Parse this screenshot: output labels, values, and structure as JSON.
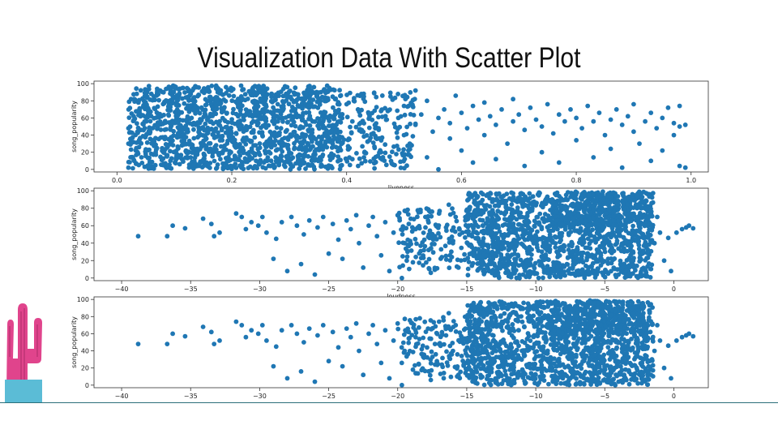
{
  "slide": {
    "title": "Visualization Data With Scatter Plot"
  },
  "colors": {
    "points": "#1f77b4",
    "axis": "#333333",
    "accent_line": "#2b6f7a",
    "cactus": "#e0448c",
    "pot": "#5bbcd6"
  },
  "icons": {
    "decoration": "cactus-in-pot"
  },
  "chart_data": [
    {
      "type": "scatter",
      "xlabel": "liveness",
      "ylabel": "song_popularity",
      "xlim": [
        -0.04,
        1.03
      ],
      "ylim": [
        -3,
        103
      ],
      "xticks": [
        0.0,
        0.2,
        0.4,
        0.6,
        0.8,
        1.0
      ],
      "xtick_labels": [
        "0.0",
        "0.2",
        "0.4",
        "0.6",
        "0.8",
        "1.0"
      ],
      "yticks": [
        0,
        20,
        40,
        60,
        80,
        100
      ],
      "ytick_labels": [
        "0",
        "20",
        "40",
        "60",
        "80",
        "100"
      ],
      "grid": false,
      "points": [
        [
          0.02,
          2
        ],
        [
          0.02,
          30
        ],
        [
          0.02,
          48
        ],
        [
          0.03,
          58
        ],
        [
          0.03,
          82
        ],
        [
          0.03,
          10
        ],
        [
          0.04,
          65
        ],
        [
          0.05,
          18
        ],
        [
          0.06,
          88
        ],
        [
          0.07,
          94
        ],
        [
          0.08,
          5
        ],
        [
          0.09,
          74
        ],
        [
          0.1,
          97
        ],
        [
          0.11,
          38
        ],
        [
          0.12,
          84
        ],
        [
          0.13,
          60
        ],
        [
          0.14,
          24
        ],
        [
          0.15,
          92
        ],
        [
          0.16,
          46
        ],
        [
          0.17,
          70
        ],
        [
          0.18,
          12
        ],
        [
          0.19,
          96
        ],
        [
          0.2,
          55
        ],
        [
          0.21,
          80
        ],
        [
          0.22,
          33
        ],
        [
          0.23,
          91
        ],
        [
          0.24,
          64
        ],
        [
          0.25,
          8
        ],
        [
          0.26,
          86
        ],
        [
          0.27,
          42
        ],
        [
          0.28,
          76
        ],
        [
          0.29,
          94
        ],
        [
          0.3,
          20
        ],
        [
          0.31,
          68
        ],
        [
          0.32,
          50
        ],
        [
          0.33,
          88
        ],
        [
          0.34,
          14
        ],
        [
          0.35,
          72
        ],
        [
          0.36,
          58
        ],
        [
          0.37,
          95
        ],
        [
          0.38,
          36
        ],
        [
          0.38,
          82
        ],
        [
          0.39,
          62
        ],
        [
          0.39,
          4
        ],
        [
          0.4,
          76
        ],
        [
          0.41,
          56
        ],
        [
          0.41,
          12
        ],
        [
          0.42,
          70
        ],
        [
          0.42,
          4
        ],
        [
          0.43,
          85
        ],
        [
          0.44,
          62
        ],
        [
          0.44,
          34
        ],
        [
          0.45,
          48
        ],
        [
          0.46,
          20
        ],
        [
          0.46,
          68
        ],
        [
          0.47,
          58
        ],
        [
          0.48,
          6
        ],
        [
          0.48,
          82
        ],
        [
          0.49,
          60
        ],
        [
          0.5,
          40
        ],
        [
          0.5,
          74
        ],
        [
          0.51,
          30
        ],
        [
          0.52,
          52
        ],
        [
          0.52,
          92
        ],
        [
          0.53,
          64
        ],
        [
          0.54,
          14
        ],
        [
          0.54,
          80
        ],
        [
          0.55,
          44
        ],
        [
          0.56,
          60
        ],
        [
          0.56,
          0
        ],
        [
          0.57,
          70
        ],
        [
          0.58,
          36
        ],
        [
          0.58,
          54
        ],
        [
          0.59,
          86
        ],
        [
          0.6,
          22
        ],
        [
          0.6,
          66
        ],
        [
          0.61,
          48
        ],
        [
          0.62,
          74
        ],
        [
          0.62,
          8
        ],
        [
          0.63,
          58
        ],
        [
          0.64,
          40
        ],
        [
          0.64,
          78
        ],
        [
          0.65,
          62
        ],
        [
          0.66,
          12
        ],
        [
          0.66,
          52
        ],
        [
          0.67,
          70
        ],
        [
          0.68,
          30
        ],
        [
          0.69,
          56
        ],
        [
          0.69,
          82
        ],
        [
          0.7,
          64
        ],
        [
          0.71,
          4
        ],
        [
          0.71,
          46
        ],
        [
          0.72,
          72
        ],
        [
          0.73,
          58
        ],
        [
          0.74,
          20
        ],
        [
          0.74,
          50
        ],
        [
          0.75,
          76
        ],
        [
          0.76,
          42
        ],
        [
          0.77,
          64
        ],
        [
          0.77,
          8
        ],
        [
          0.78,
          56
        ],
        [
          0.79,
          70
        ],
        [
          0.8,
          34
        ],
        [
          0.8,
          60
        ],
        [
          0.81,
          48
        ],
        [
          0.82,
          74
        ],
        [
          0.83,
          14
        ],
        [
          0.83,
          56
        ],
        [
          0.84,
          66
        ],
        [
          0.85,
          40
        ],
        [
          0.86,
          58
        ],
        [
          0.86,
          24
        ],
        [
          0.87,
          70
        ],
        [
          0.88,
          52
        ],
        [
          0.88,
          2
        ],
        [
          0.89,
          62
        ],
        [
          0.9,
          44
        ],
        [
          0.9,
          76
        ],
        [
          0.91,
          30
        ],
        [
          0.92,
          56
        ],
        [
          0.93,
          66
        ],
        [
          0.93,
          10
        ],
        [
          0.94,
          48
        ],
        [
          0.95,
          60
        ],
        [
          0.95,
          22
        ],
        [
          0.96,
          72
        ],
        [
          0.97,
          54
        ],
        [
          0.97,
          40
        ],
        [
          0.98,
          74
        ],
        [
          0.98,
          50
        ],
        [
          0.98,
          4
        ],
        [
          0.99,
          2
        ],
        [
          0.99,
          52
        ]
      ],
      "dense_regions": [
        {
          "x": [
            0.02,
            0.39
          ],
          "y": [
            0,
            98
          ],
          "n": 1400
        },
        {
          "x": [
            0.39,
            0.52
          ],
          "y": [
            0,
            90
          ],
          "n": 180
        }
      ]
    },
    {
      "type": "scatter",
      "xlabel": "loudness",
      "ylabel": "song_popularity",
      "xlim": [
        -42,
        2.5
      ],
      "ylim": [
        -3,
        103
      ],
      "xticks": [
        -40,
        -35,
        -30,
        -25,
        -20,
        -15,
        -10,
        -5,
        0
      ],
      "xtick_labels": [
        "−40",
        "−35",
        "−30",
        "−25",
        "−20",
        "−15",
        "−10",
        "−5",
        "0"
      ],
      "yticks": [
        0,
        20,
        40,
        60,
        80,
        100
      ],
      "ytick_labels": [
        "0",
        "20",
        "40",
        "60",
        "80",
        "100"
      ],
      "grid": false,
      "points": [
        [
          -38.8,
          48
        ],
        [
          -36.7,
          48
        ],
        [
          -36.3,
          60
        ],
        [
          -35.4,
          57
        ],
        [
          -34.1,
          68
        ],
        [
          -33.5,
          62
        ],
        [
          -33.3,
          48
        ],
        [
          -32.9,
          52
        ],
        [
          -31.7,
          74
        ],
        [
          -31.3,
          70
        ],
        [
          -31.0,
          56
        ],
        [
          -30.6,
          64
        ],
        [
          -30.1,
          60
        ],
        [
          -29.8,
          70
        ],
        [
          -29.5,
          52
        ],
        [
          -29.0,
          22
        ],
        [
          -28.8,
          45
        ],
        [
          -28.4,
          64
        ],
        [
          -28.0,
          8
        ],
        [
          -27.7,
          70
        ],
        [
          -27.3,
          60
        ],
        [
          -27.0,
          16
        ],
        [
          -26.8,
          50
        ],
        [
          -26.4,
          66
        ],
        [
          -26.0,
          4
        ],
        [
          -25.8,
          58
        ],
        [
          -25.4,
          70
        ],
        [
          -25.0,
          28
        ],
        [
          -24.7,
          62
        ],
        [
          -24.3,
          44
        ],
        [
          -24.0,
          22
        ],
        [
          -23.7,
          66
        ],
        [
          -23.4,
          56
        ],
        [
          -23.0,
          72
        ],
        [
          -22.8,
          40
        ],
        [
          -22.5,
          12
        ],
        [
          -22.1,
          60
        ],
        [
          -21.8,
          70
        ],
        [
          -21.5,
          48
        ],
        [
          -21.2,
          26
        ],
        [
          -20.9,
          64
        ],
        [
          -20.6,
          8
        ],
        [
          -20.3,
          52
        ],
        [
          -20.0,
          72
        ],
        [
          -19.7,
          0
        ],
        [
          -19.5,
          40
        ],
        [
          -19.2,
          62
        ],
        [
          -18.9,
          18
        ],
        [
          -18.7,
          56
        ],
        [
          -18.4,
          78
        ],
        [
          -18.1,
          32
        ],
        [
          -17.8,
          66
        ],
        [
          -17.6,
          6
        ],
        [
          -17.3,
          48
        ],
        [
          -17.0,
          74
        ],
        [
          -16.8,
          24
        ],
        [
          -16.5,
          58
        ],
        [
          -16.3,
          84
        ],
        [
          -16.0,
          40
        ],
        [
          -15.8,
          70
        ],
        [
          -15.6,
          12
        ],
        [
          -15.3,
          52
        ],
        [
          -15.1,
          66
        ],
        [
          -4,
          4
        ],
        [
          -3.5,
          8
        ],
        [
          -3.0,
          96
        ],
        [
          -2.6,
          2
        ],
        [
          -2.2,
          30
        ],
        [
          -2.0,
          6
        ],
        [
          -1.7,
          62
        ],
        [
          -1.4,
          40
        ],
        [
          -1.2,
          70
        ],
        [
          -1.0,
          52
        ],
        [
          -0.7,
          20
        ],
        [
          -0.4,
          46
        ],
        [
          -0.2,
          8
        ],
        [
          0.2,
          52
        ],
        [
          0.6,
          56
        ],
        [
          0.9,
          58
        ],
        [
          1.1,
          60
        ],
        [
          1.4,
          57
        ]
      ],
      "dense_regions": [
        {
          "x": [
            -15,
            -1.5
          ],
          "y": [
            0,
            98
          ],
          "n": 1400
        },
        {
          "x": [
            -20,
            -13
          ],
          "y": [
            8,
            80
          ],
          "n": 180
        },
        {
          "x": [
            -9,
            -2
          ],
          "y": [
            60,
            99
          ],
          "n": 220
        }
      ]
    },
    {
      "type": "scatter",
      "xlabel": "",
      "ylabel": "song_popularity",
      "xlim": [
        -42,
        2.5
      ],
      "ylim": [
        -3,
        103
      ],
      "xticks": [
        -40,
        -35,
        -30,
        -25,
        -20,
        -15,
        -10,
        -5,
        0
      ],
      "xtick_labels": [
        "−40",
        "−35",
        "−30",
        "−25",
        "−20",
        "−15",
        "−10",
        "−5",
        "0"
      ],
      "yticks": [
        0,
        20,
        40,
        60,
        80,
        100
      ],
      "ytick_labels": [
        "0",
        "20",
        "40",
        "60",
        "80",
        "100"
      ],
      "grid": false,
      "points": [
        [
          -38.8,
          48
        ],
        [
          -36.7,
          48
        ],
        [
          -36.3,
          60
        ],
        [
          -35.4,
          57
        ],
        [
          -34.1,
          68
        ],
        [
          -33.5,
          62
        ],
        [
          -33.3,
          48
        ],
        [
          -32.9,
          52
        ],
        [
          -31.7,
          74
        ],
        [
          -31.3,
          70
        ],
        [
          -31.0,
          56
        ],
        [
          -30.6,
          64
        ],
        [
          -30.1,
          60
        ],
        [
          -29.8,
          70
        ],
        [
          -29.5,
          52
        ],
        [
          -29.0,
          22
        ],
        [
          -28.8,
          45
        ],
        [
          -28.4,
          64
        ],
        [
          -28.0,
          8
        ],
        [
          -27.7,
          70
        ],
        [
          -27.3,
          60
        ],
        [
          -27.0,
          16
        ],
        [
          -26.8,
          50
        ],
        [
          -26.4,
          66
        ],
        [
          -26.0,
          4
        ],
        [
          -25.8,
          58
        ],
        [
          -25.4,
          70
        ],
        [
          -25.0,
          28
        ],
        [
          -24.7,
          62
        ],
        [
          -24.3,
          44
        ],
        [
          -24.0,
          22
        ],
        [
          -23.7,
          66
        ],
        [
          -23.4,
          56
        ],
        [
          -23.0,
          72
        ],
        [
          -22.8,
          40
        ],
        [
          -22.5,
          12
        ],
        [
          -22.1,
          60
        ],
        [
          -21.8,
          70
        ],
        [
          -21.5,
          48
        ],
        [
          -21.2,
          26
        ],
        [
          -20.9,
          64
        ],
        [
          -20.6,
          8
        ],
        [
          -20.3,
          52
        ],
        [
          -20.0,
          72
        ],
        [
          -19.7,
          0
        ],
        [
          -19.5,
          40
        ],
        [
          -19.2,
          62
        ],
        [
          -18.9,
          18
        ],
        [
          -18.7,
          56
        ],
        [
          -18.4,
          78
        ],
        [
          -18.1,
          32
        ],
        [
          -17.8,
          66
        ],
        [
          -17.6,
          6
        ],
        [
          -17.3,
          48
        ],
        [
          -17.0,
          74
        ],
        [
          -16.8,
          24
        ],
        [
          -16.5,
          58
        ],
        [
          -16.3,
          84
        ],
        [
          -16.0,
          40
        ],
        [
          -15.8,
          70
        ],
        [
          -15.6,
          12
        ],
        [
          -15.3,
          52
        ],
        [
          -15.1,
          66
        ],
        [
          -4,
          4
        ],
        [
          -3.5,
          8
        ],
        [
          -3.0,
          96
        ],
        [
          -2.6,
          2
        ],
        [
          -2.2,
          30
        ],
        [
          -2.0,
          6
        ],
        [
          -1.7,
          62
        ],
        [
          -1.4,
          40
        ],
        [
          -1.2,
          70
        ],
        [
          -1.0,
          52
        ],
        [
          -0.7,
          20
        ],
        [
          -0.4,
          46
        ],
        [
          -0.2,
          8
        ],
        [
          0.2,
          52
        ],
        [
          0.6,
          56
        ],
        [
          0.9,
          58
        ],
        [
          1.1,
          60
        ],
        [
          1.4,
          57
        ]
      ],
      "dense_regions": [
        {
          "x": [
            -15,
            -1.5
          ],
          "y": [
            0,
            98
          ],
          "n": 1400
        },
        {
          "x": [
            -20,
            -13
          ],
          "y": [
            8,
            80
          ],
          "n": 180
        },
        {
          "x": [
            -9,
            -2
          ],
          "y": [
            60,
            99
          ],
          "n": 220
        }
      ]
    }
  ]
}
